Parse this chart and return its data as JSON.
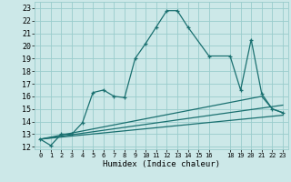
{
  "xlabel": "Humidex (Indice chaleur)",
  "bg_color": "#cce8e8",
  "grid_color": "#99cccc",
  "line_color": "#1a7070",
  "xlim": [
    -0.5,
    23.5
  ],
  "ylim": [
    11.8,
    23.5
  ],
  "xticks": [
    0,
    1,
    2,
    3,
    4,
    5,
    6,
    7,
    8,
    9,
    10,
    11,
    12,
    13,
    14,
    15,
    16,
    18,
    19,
    20,
    21,
    22,
    23
  ],
  "yticks": [
    12,
    13,
    14,
    15,
    16,
    17,
    18,
    19,
    20,
    21,
    22,
    23
  ],
  "series1_x": [
    0,
    1,
    2,
    3,
    4,
    5,
    6,
    7,
    8,
    9,
    10,
    11,
    12,
    13,
    14,
    16,
    18,
    19,
    20,
    21,
    22,
    23
  ],
  "series1_y": [
    12.6,
    12.1,
    13.0,
    13.0,
    13.9,
    16.3,
    16.5,
    16.0,
    15.9,
    19.0,
    20.2,
    21.5,
    22.8,
    22.8,
    21.5,
    19.2,
    19.2,
    16.5,
    20.5,
    16.2,
    15.0,
    14.7
  ],
  "series2_x": [
    0,
    23
  ],
  "series2_y": [
    12.6,
    14.5
  ],
  "series3_x": [
    0,
    23
  ],
  "series3_y": [
    12.6,
    15.3
  ],
  "series4_x": [
    0,
    21,
    22,
    23
  ],
  "series4_y": [
    12.6,
    16.0,
    15.0,
    14.7
  ]
}
